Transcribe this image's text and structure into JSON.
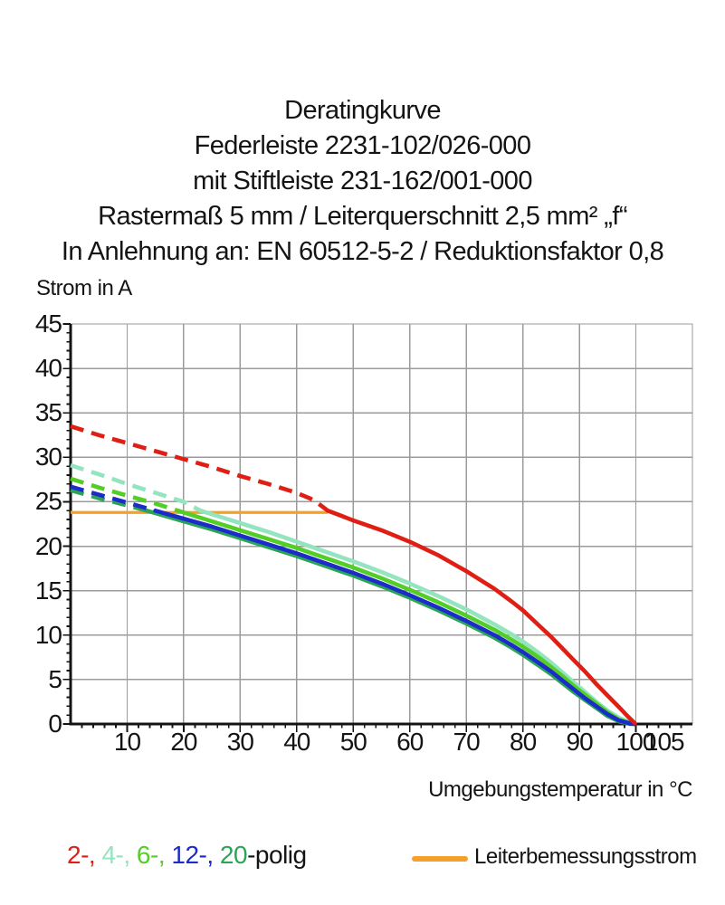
{
  "header": {
    "lines": [
      "Deratingkurve",
      "Federleiste 2231-102/026-000",
      "mit Stiftleiste 231-162/001-000",
      "Rastermaß 5 mm / Leiterquerschnitt 2,5 mm² „f“",
      "In Anlehnung an: EN 60512-5-2 / Reduktionsfaktor 0,8"
    ]
  },
  "chart_data": {
    "type": "line",
    "title": "Deratingkurve Federleiste 2231-102/026-000 mit Stiftleiste 231-162/001-000",
    "ylabel": "Strom in A",
    "xlabel": "Umgebungstemperatur in °C",
    "xlim": [
      0,
      110
    ],
    "ylim": [
      0,
      45
    ],
    "x_major_ticks": [
      10,
      20,
      30,
      40,
      50,
      60,
      70,
      80,
      90,
      100,
      105
    ],
    "x_minor_step": 2,
    "y_major_ticks": [
      45,
      40,
      35,
      30,
      25,
      20,
      15,
      10,
      5,
      0
    ],
    "y_minor_step": 1,
    "grid": {
      "x_step": 10,
      "y_step": 5,
      "color": "#9b9b9b",
      "on": true
    },
    "axis_color": "#141414",
    "line_style_note": "curves dashed above Leiterbemessungsstrom (24 A), solid below",
    "series": [
      {
        "name": "4-polig",
        "color": "#93e4bf",
        "solid_from": 23,
        "points": [
          [
            0,
            29.1
          ],
          [
            5,
            28.1
          ],
          [
            10,
            27.0
          ],
          [
            15,
            26.0
          ],
          [
            20,
            25.0
          ],
          [
            23,
            24.0
          ],
          [
            25,
            23.6
          ],
          [
            30,
            22.6
          ],
          [
            35,
            21.6
          ],
          [
            40,
            20.5
          ],
          [
            45,
            19.4
          ],
          [
            50,
            18.3
          ],
          [
            55,
            17.1
          ],
          [
            60,
            15.8
          ],
          [
            65,
            14.4
          ],
          [
            70,
            12.9
          ],
          [
            75,
            11.2
          ],
          [
            78,
            10.1
          ],
          [
            80,
            9.3
          ],
          [
            83,
            7.9
          ],
          [
            85,
            6.9
          ],
          [
            87,
            5.8
          ],
          [
            89,
            4.7
          ],
          [
            91,
            3.6
          ],
          [
            93,
            2.5
          ],
          [
            95,
            1.5
          ],
          [
            97,
            0.7
          ],
          [
            99,
            0.15
          ],
          [
            99.8,
            0.05
          ]
        ]
      },
      {
        "name": "6-polig",
        "color": "#52ce27",
        "solid_from": 19,
        "points": [
          [
            0,
            27.6
          ],
          [
            5,
            26.6
          ],
          [
            10,
            25.7
          ],
          [
            15,
            24.8
          ],
          [
            19,
            24.0
          ],
          [
            25,
            22.8
          ],
          [
            30,
            21.8
          ],
          [
            35,
            20.8
          ],
          [
            40,
            19.8
          ],
          [
            45,
            18.7
          ],
          [
            50,
            17.6
          ],
          [
            55,
            16.4
          ],
          [
            60,
            15.1
          ],
          [
            65,
            13.7
          ],
          [
            70,
            12.2
          ],
          [
            75,
            10.6
          ],
          [
            78,
            9.5
          ],
          [
            80,
            8.7
          ],
          [
            83,
            7.4
          ],
          [
            85,
            6.4
          ],
          [
            87,
            5.4
          ],
          [
            89,
            4.3
          ],
          [
            91,
            3.3
          ],
          [
            93,
            2.3
          ],
          [
            95,
            1.3
          ],
          [
            97,
            0.5
          ],
          [
            99,
            0.1
          ],
          [
            99.8,
            0.0
          ]
        ]
      },
      {
        "name": "20-polig",
        "color": "#2aa455",
        "solid_from": 13.5,
        "points": [
          [
            0,
            26.3
          ],
          [
            5,
            25.4
          ],
          [
            10,
            24.6
          ],
          [
            13.5,
            24.0
          ],
          [
            20,
            22.8
          ],
          [
            25,
            21.9
          ],
          [
            30,
            20.9
          ],
          [
            35,
            19.9
          ],
          [
            40,
            18.9
          ],
          [
            45,
            17.8
          ],
          [
            50,
            16.7
          ],
          [
            55,
            15.5
          ],
          [
            60,
            14.2
          ],
          [
            65,
            12.8
          ],
          [
            70,
            11.3
          ],
          [
            75,
            9.7
          ],
          [
            78,
            8.6
          ],
          [
            80,
            7.8
          ],
          [
            83,
            6.5
          ],
          [
            85,
            5.6
          ],
          [
            87,
            4.6
          ],
          [
            89,
            3.6
          ],
          [
            91,
            2.7
          ],
          [
            93,
            1.8
          ],
          [
            95,
            0.9
          ],
          [
            97,
            0.3
          ],
          [
            99,
            0.0
          ],
          [
            99.8,
            0.0
          ]
        ]
      },
      {
        "name": "12-polig",
        "color": "#1b2cc8",
        "solid_from": 15,
        "points": [
          [
            0,
            26.7
          ],
          [
            5,
            25.8
          ],
          [
            10,
            24.9
          ],
          [
            15,
            24.0
          ],
          [
            20,
            23.1
          ],
          [
            25,
            22.2
          ],
          [
            30,
            21.2
          ],
          [
            35,
            20.2
          ],
          [
            40,
            19.2
          ],
          [
            45,
            18.1
          ],
          [
            50,
            17.0
          ],
          [
            55,
            15.8
          ],
          [
            60,
            14.5
          ],
          [
            65,
            13.1
          ],
          [
            70,
            11.6
          ],
          [
            75,
            10.0
          ],
          [
            78,
            8.9
          ],
          [
            80,
            8.1
          ],
          [
            83,
            6.8
          ],
          [
            85,
            5.9
          ],
          [
            87,
            4.9
          ],
          [
            89,
            3.9
          ],
          [
            91,
            2.9
          ],
          [
            93,
            2.0
          ],
          [
            95,
            1.1
          ],
          [
            97,
            0.4
          ],
          [
            99,
            0.05
          ],
          [
            99.8,
            0.0
          ]
        ]
      },
      {
        "name": "2-polig",
        "color": "#df1f14",
        "solid_from": 45.5,
        "points": [
          [
            0,
            33.5
          ],
          [
            5,
            32.5
          ],
          [
            10,
            31.6
          ],
          [
            15,
            30.7
          ],
          [
            20,
            29.8
          ],
          [
            25,
            28.9
          ],
          [
            30,
            27.9
          ],
          [
            35,
            27.0
          ],
          [
            40,
            26.0
          ],
          [
            43,
            25.2
          ],
          [
            45.5,
            24.0
          ],
          [
            48,
            23.4
          ],
          [
            50,
            22.9
          ],
          [
            55,
            21.8
          ],
          [
            60,
            20.5
          ],
          [
            65,
            19.0
          ],
          [
            70,
            17.2
          ],
          [
            75,
            15.2
          ],
          [
            78,
            13.8
          ],
          [
            80,
            12.8
          ],
          [
            83,
            11.0
          ],
          [
            85,
            9.8
          ],
          [
            87,
            8.5
          ],
          [
            89,
            7.2
          ],
          [
            91,
            5.9
          ],
          [
            93,
            4.5
          ],
          [
            95,
            3.2
          ],
          [
            97,
            1.9
          ],
          [
            98.5,
            0.9
          ],
          [
            99.8,
            0.1
          ]
        ]
      }
    ],
    "reference_line": {
      "label": "Leiterbemessungsstrom",
      "color": "#f5a02a",
      "y": 23.8,
      "x_from": 0,
      "x_to": 45.5
    }
  },
  "legend": {
    "poles": {
      "parts": [
        {
          "text": "2-,",
          "color": "#df1f14"
        },
        {
          "text": " 4-,",
          "color": "#93e4bf"
        },
        {
          "text": " 6-,",
          "color": "#52ce27"
        },
        {
          "text": " 12-,",
          "color": "#1b2cc8"
        },
        {
          "text": " 20",
          "color": "#2aa455"
        },
        {
          "text": "-polig",
          "color": "#141414"
        }
      ]
    },
    "reference": {
      "swatch_color": "#f5a02a",
      "label": "Leiterbemessungsstrom"
    }
  }
}
